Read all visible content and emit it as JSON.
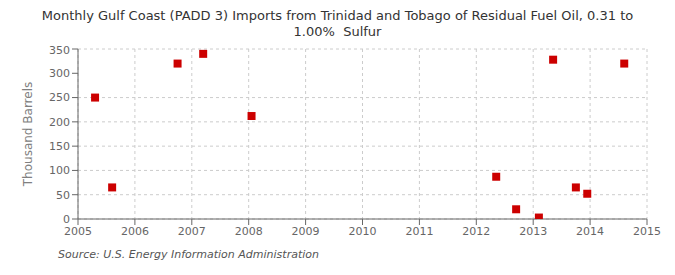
{
  "chart_data": {
    "type": "scatter",
    "title": "Monthly Gulf Coast (PADD 3) Imports from Trinidad and Tobago of Residual Fuel Oil, 0.31 to\n1.00%  Sulfur",
    "ylabel": "Thousand Barrels",
    "annotations": [
      "Source: U.S. Energy Information Administration"
    ],
    "x": [
      2005.3,
      2005.6,
      2006.75,
      2007.2,
      2008.05,
      2012.35,
      2012.7,
      2013.1,
      2013.35,
      2013.75,
      2013.95,
      2014.6
    ],
    "values": [
      250,
      65,
      320,
      340,
      212,
      87,
      20,
      3,
      328,
      65,
      52,
      320
    ],
    "color": "#cc0000",
    "marker": "square",
    "xlim": [
      2005,
      2015
    ],
    "xticks": [
      2005,
      2006,
      2007,
      2008,
      2009,
      2010,
      2011,
      2012,
      2013,
      2014,
      2015
    ],
    "ylim": [
      0,
      350
    ],
    "yticks": [
      0,
      50,
      100,
      150,
      200,
      250,
      300,
      350
    ],
    "grid": true
  }
}
